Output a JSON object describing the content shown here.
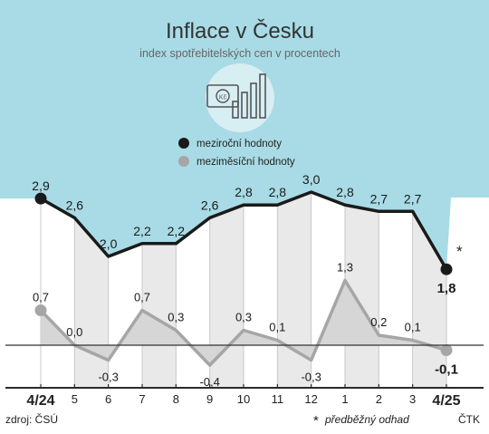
{
  "chart_data": {
    "type": "line",
    "title": "Inflace v Česku",
    "subtitle": "index spotřebitelských cen v procentech",
    "categories": [
      "4/24",
      "5",
      "6",
      "7",
      "8",
      "9",
      "10",
      "11",
      "12",
      "1",
      "2",
      "3",
      "4/25"
    ],
    "series": [
      {
        "name": "meziroční hodnoty",
        "values": [
          2.9,
          2.6,
          2.0,
          2.2,
          2.2,
          2.6,
          2.8,
          2.8,
          3.0,
          2.8,
          2.7,
          2.7,
          1.8
        ],
        "labels": [
          "2,9",
          "2,6",
          "2,0",
          "2,2",
          "2,2",
          "2,6",
          "2,8",
          "2,8",
          "3,0",
          "2,8",
          "2,7",
          "2,7",
          "1,8"
        ],
        "color": "#1a1a1a"
      },
      {
        "name": "meziměsíční hodnoty",
        "values": [
          0.7,
          0.0,
          -0.3,
          0.7,
          0.3,
          -0.4,
          0.3,
          0.1,
          -0.3,
          1.3,
          0.2,
          0.1,
          -0.1
        ],
        "labels": [
          "0,7",
          "0,0",
          "-0,3",
          "0,7",
          "0,3",
          "-0,4",
          "0,3",
          "0,1",
          "-0,3",
          "1,3",
          "0,2",
          "0,1",
          "-0,1"
        ],
        "color": "#a6a6a6"
      }
    ],
    "legend_position": "top-center",
    "asterisk": "*",
    "source": "zdroj: ČSÚ",
    "note": "předběžný odhad",
    "credit": "ČTK",
    "colors": {
      "header_bg": "#a8dbe5",
      "stripe": "#e9e9e9",
      "area_fill": "#d6d6d6",
      "grid": "#c8c8c8",
      "axis": "#2a2a2a"
    }
  }
}
